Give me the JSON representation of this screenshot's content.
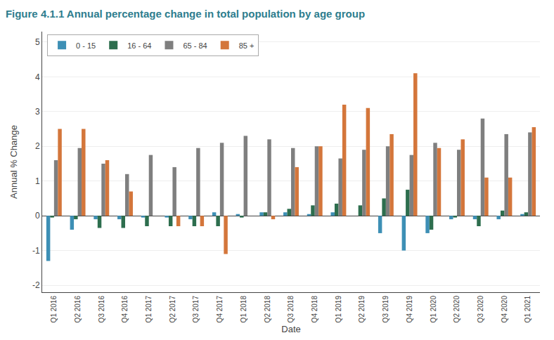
{
  "chart_data": {
    "type": "bar",
    "title": "Figure 4.1.1 Annual percentage change in total population by age group",
    "xlabel": "Date",
    "ylabel": "Annual % Change",
    "categories": [
      "Q1 2016",
      "Q2 2016",
      "Q3 2016",
      "Q4 2016",
      "Q1 2017",
      "Q2 2017",
      "Q3 2017",
      "Q4 2017",
      "Q1 2018",
      "Q2 2018",
      "Q3 2018",
      "Q4 2018",
      "Q1 2019",
      "Q2 2019",
      "Q3 2019",
      "Q4 2019",
      "Q1 2020",
      "Q2 2020",
      "Q3 2020",
      "Q4 2020",
      "Q1 2021"
    ],
    "series": [
      {
        "name": "0 - 15",
        "color": "#3d8fb5",
        "values": [
          -1.3,
          -0.4,
          -0.1,
          -0.1,
          -0.05,
          -0.05,
          -0.1,
          0.1,
          0.05,
          0.1,
          0.1,
          0.05,
          0.1,
          0.0,
          -0.5,
          -1.0,
          -0.5,
          -0.1,
          -0.1,
          -0.1,
          0.05
        ]
      },
      {
        "name": "16 - 64",
        "color": "#2d6e4e",
        "values": [
          -0.05,
          -0.1,
          -0.35,
          -0.35,
          -0.3,
          -0.3,
          -0.3,
          -0.3,
          -0.05,
          0.1,
          0.2,
          0.3,
          0.35,
          0.3,
          0.5,
          0.75,
          -0.4,
          -0.05,
          -0.3,
          0.15,
          0.1
        ]
      },
      {
        "name": "65 - 84",
        "color": "#7f7f7f",
        "values": [
          1.6,
          1.95,
          1.5,
          1.2,
          1.75,
          1.4,
          1.95,
          2.1,
          2.3,
          2.2,
          1.95,
          2.0,
          1.65,
          1.9,
          2.0,
          1.75,
          2.1,
          1.9,
          2.8,
          2.35,
          2.4
        ]
      },
      {
        "name": "85 +",
        "color": "#d4763b",
        "values": [
          2.5,
          2.5,
          1.6,
          0.7,
          0.0,
          -0.3,
          -0.3,
          -1.1,
          0.0,
          -0.1,
          1.4,
          2.0,
          3.2,
          3.1,
          2.35,
          4.1,
          1.95,
          2.2,
          1.1,
          1.1,
          2.55
        ]
      }
    ],
    "ylim": [
      -2.2,
      5.3
    ],
    "yticks": [
      -2,
      -1,
      0,
      1,
      2,
      3,
      4,
      5
    ],
    "grid": true,
    "legend": "upper left"
  }
}
